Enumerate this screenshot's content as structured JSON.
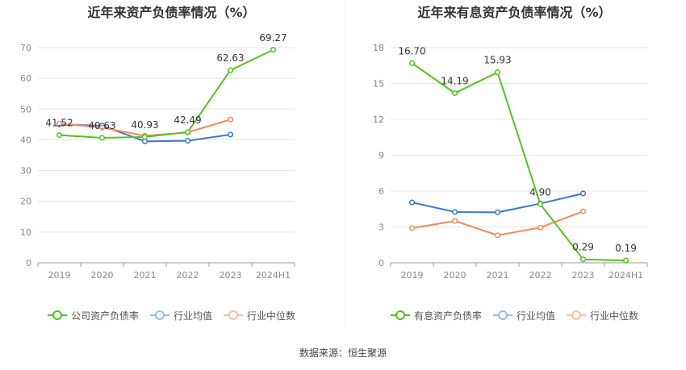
{
  "source": "数据来源：恒生聚源",
  "chart_data": [
    {
      "type": "line",
      "title": "近年来资产负债率情况（%）",
      "categories": [
        "2019",
        "2020",
        "2021",
        "2022",
        "2023",
        "2024H1"
      ],
      "ylim": [
        0,
        75
      ],
      "yticks": [
        0,
        10,
        20,
        30,
        40,
        50,
        60,
        70
      ],
      "grid": true,
      "legend_position": "bottom",
      "series": [
        {
          "name": "公司资产负债率",
          "color": "#52c41a",
          "values": [
            41.52,
            40.63,
            40.93,
            42.49,
            62.63,
            69.27
          ],
          "labels": [
            "41.52",
            "40.63",
            "40.93",
            "42.49",
            "62.63",
            "69.27"
          ]
        },
        {
          "name": "行业均值",
          "color": "#3a75d6",
          "values": [
            45.0,
            44.6,
            39.5,
            39.7,
            41.7,
            null
          ],
          "labels": []
        },
        {
          "name": "行业中位数",
          "color": "#f08b5a",
          "values": [
            45.3,
            44.0,
            41.3,
            42.4,
            46.6,
            null
          ],
          "labels": []
        }
      ]
    },
    {
      "type": "line",
      "title": "近年来有息资产负债率情况（%）",
      "categories": [
        "2019",
        "2020",
        "2021",
        "2022",
        "2023",
        "2024H1"
      ],
      "ylim": [
        0,
        18
      ],
      "yticks": [
        0,
        3,
        6,
        9,
        12,
        15,
        18
      ],
      "grid": true,
      "legend_position": "bottom",
      "series": [
        {
          "name": "有息资产负债率",
          "color": "#52c41a",
          "values": [
            16.7,
            14.19,
            15.93,
            4.9,
            0.29,
            0.19
          ],
          "labels": [
            "16.70",
            "14.19",
            "15.93",
            "4.90",
            "0.29",
            "0.19"
          ]
        },
        {
          "name": "行业均值",
          "color": "#3a75d6",
          "values": [
            5.05,
            4.25,
            4.22,
            4.95,
            5.8,
            null
          ],
          "labels": []
        },
        {
          "name": "行业中位数",
          "color": "#f08b5a",
          "values": [
            2.9,
            3.5,
            2.3,
            2.95,
            4.3,
            null
          ],
          "labels": []
        }
      ]
    }
  ]
}
